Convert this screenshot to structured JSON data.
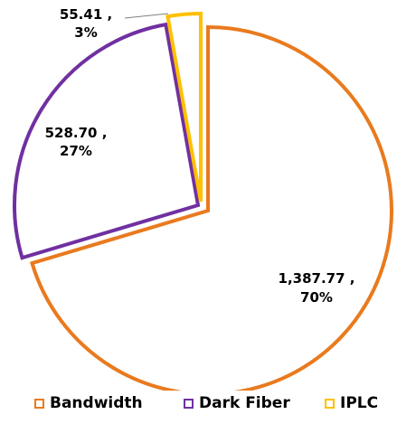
{
  "chart_data": {
    "type": "pie",
    "style": "exploded outline slices, white fill",
    "title": "",
    "series": [
      {
        "name": "Bandwidth",
        "value": 1387.77,
        "label_value": "1,387.77 ,",
        "label_pct": "70%",
        "color": "#E97A1E"
      },
      {
        "name": "Dark Fiber",
        "value": 528.7,
        "label_value": "528.70 ,",
        "label_pct": "27%",
        "color": "#7030A0"
      },
      {
        "name": "IPLC",
        "value": 55.41,
        "label_value": "55.41 ,",
        "label_pct": "3%",
        "color": "#FFC000"
      }
    ],
    "legend_position": "bottom",
    "leader_line_color": "#808080"
  }
}
